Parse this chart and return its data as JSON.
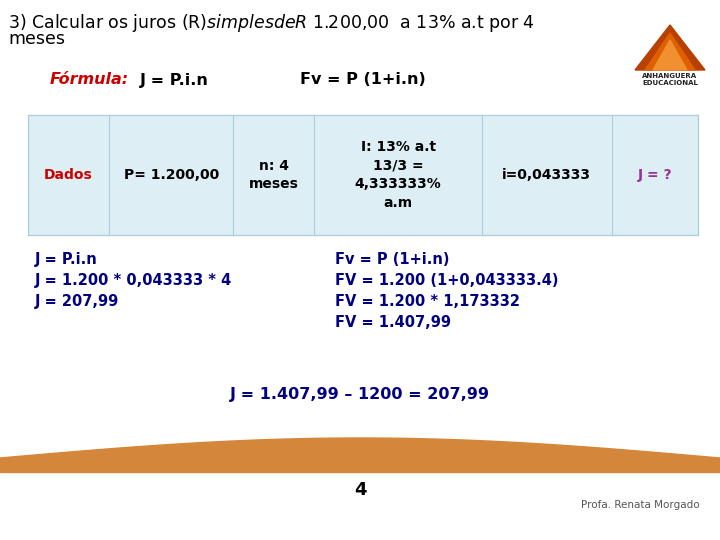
{
  "title_line1": "3) Calcular os juros (R$) simples de R$ 1.200,00  a 13% a.t por 4",
  "title_line2": "meses",
  "formula_label": "Fórmula:",
  "formula_text": "J = P.i.n",
  "formula_fv": "Fv = P (1+i.n)",
  "table_headers": [
    "Dados",
    "P= 1.200,00",
    "n: 4\nmeses",
    "I: 13% a.t\n13/3 =\n4,333333%\na.m",
    "i=0,043333",
    "J = ?"
  ],
  "calc_left": [
    "J = P.i.n",
    "J = 1.200 * 0,043333 * 4",
    "J = 207,99"
  ],
  "calc_right": [
    "Fv = P (1+i.n)",
    "FV = 1.200 (1+0,043333.4)",
    "FV = 1.200 * 1,173332",
    "FV = 1.407,99"
  ],
  "final": "J = 1.407,99 – 1200 = 207,99",
  "page_number": "4",
  "footer": "Profa. Renata Morgado",
  "bg_color": "#ffffff",
  "title_color": "#000000",
  "formula_label_color": "#cc0000",
  "formula_text_color": "#000000",
  "table_header_color": "#cc0000",
  "table_bg_color": "#ddeef5",
  "j_color": "#993399",
  "calc_color": "#000080",
  "final_color": "#000080",
  "wave_color": "#d4873a",
  "table_border_color": "#aaccdd"
}
